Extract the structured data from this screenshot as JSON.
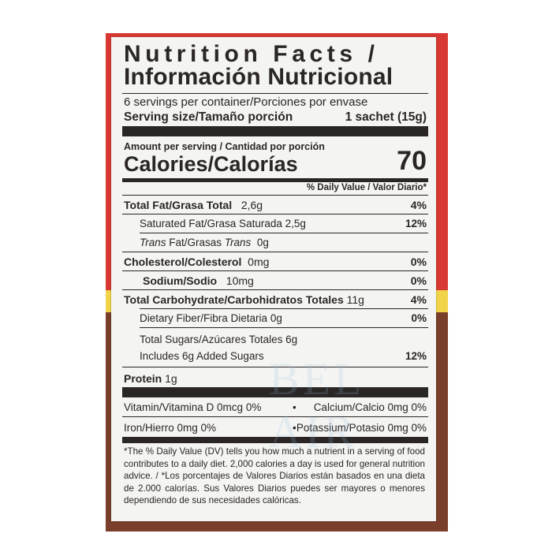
{
  "label": {
    "title_en": "Nutrition Facts /",
    "title_es": "Información Nutricional",
    "servings": "6 servings per container/Porciones por envase",
    "serving_size_label": "Serving size/Tamaño porción",
    "serving_size_value": "1 sachet (15g)",
    "amount_per_serving": "Amount per serving / Cantidad por porción",
    "calories_label": "Calories/Calorías",
    "calories_value": "70",
    "dv_header": "% Daily Value / Valor Diario*",
    "nutrients": [
      {
        "label": "Total Fat/Grasa Total",
        "amount": "2,6g",
        "dv": "4%"
      },
      {
        "label": "Saturated Fat/Grasa Saturada",
        "amount": "2,5g",
        "dv": "12%"
      },
      {
        "label_it1": "Trans",
        "label_mid": " Fat/Grasas ",
        "label_it2": "Trans",
        "amount": "0g"
      },
      {
        "label": "Cholesterol/Colesterol",
        "amount": "0mg",
        "dv": "0%"
      },
      {
        "label": "Sodium/Sodio",
        "amount": "10mg",
        "dv": "0%"
      },
      {
        "label": "Total Carbohydrate/Carbohidratos Totales",
        "amount": "11g",
        "dv": "4%"
      },
      {
        "label": "Dietary Fiber/Fibra Dietaria",
        "amount": "0g",
        "dv": "0%"
      },
      {
        "label": "Total Sugars/Azúcares Totales",
        "amount": "6g"
      },
      {
        "label": "Includes 6g Added Sugars",
        "dv": "12%"
      },
      {
        "label": "Protein",
        "amount": "1g"
      }
    ],
    "vitamins": [
      {
        "left": "Vitamin/Vitamina D 0mcg 0%",
        "right": "Calcium/Calcio 0mg 0%"
      },
      {
        "left": "Iron/Hierro 0mg 0%",
        "right": "Potassium/Potasio 0mg 0%"
      }
    ],
    "bullet": "•",
    "footnote": "*The % Daily Value (DV) tells you how much a nutrient in a serving of food contributes to a daily diet. 2,000 calories a day is used for general nutrition advice. / *Los porcentajes de Valores Diarios están basados en una dieta de 2.000 calorías. Sus Valores Diarios puedes ser mayores o menores dependiendo de sus necesidades calóricas.",
    "watermark": "BEL AIR"
  },
  "colors": {
    "package_red": "#d83a33",
    "package_yellow": "#f2d44a",
    "package_brown": "#7a3f2a",
    "label_bg": "#f4f4f2",
    "ink": "#2a2626"
  }
}
